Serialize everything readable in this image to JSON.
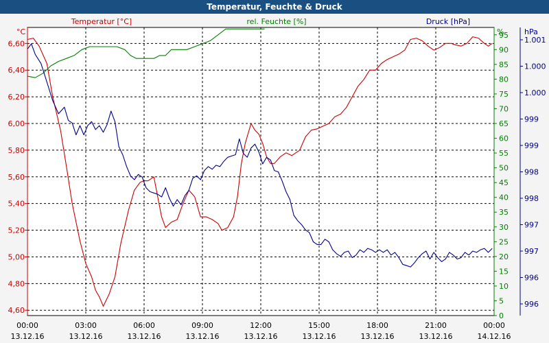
{
  "title": "Temperatur, Feuchte & Druck",
  "colors": {
    "temperature": "#cc0000",
    "humidity": "#008000",
    "pressure": "#00008b",
    "grid": "#000000",
    "titlebar": "#1a4f82"
  },
  "chart_data": {
    "type": "line",
    "title": "Temperatur, Feuchte & Druck",
    "grid": true,
    "x_tick_labels": [
      [
        "00:00",
        "13.12.16"
      ],
      [
        "03:00",
        "13.12.16"
      ],
      [
        "06:00",
        "13.12.16"
      ],
      [
        "09:00",
        "13.12.16"
      ],
      [
        "12:00",
        "13.12.16"
      ],
      [
        "15:00",
        "13.12.16"
      ],
      [
        "18:00",
        "13.12.16"
      ],
      [
        "21:00",
        "13.12.16"
      ],
      [
        "00:00",
        "14.12.16"
      ]
    ],
    "xlim": [
      0,
      24
    ],
    "axes": {
      "temperature": {
        "label": "Temperatur [°C]",
        "unit": "°C",
        "ylim": [
          4.56,
          6.72
        ],
        "ticks": [
          "4,60",
          "4,80",
          "5,00",
          "5,20",
          "5,40",
          "5,60",
          "5,80",
          "6,00",
          "6,20",
          "6,40",
          "6,60"
        ]
      },
      "humidity": {
        "label": "rel. Feuchte [%]",
        "unit": "%",
        "ylim": [
          0,
          97.5
        ],
        "ticks": [
          "0",
          "5",
          "10",
          "15",
          "20",
          "25",
          "30",
          "35",
          "40",
          "45",
          "50",
          "55",
          "60",
          "65",
          "70",
          "75",
          "80",
          "85",
          "90",
          "95"
        ]
      },
      "pressure": {
        "label": "Druck [hPa]",
        "unit": "hPa",
        "ticks": [
          "996",
          "996",
          "997",
          "997",
          "998",
          "998",
          "999",
          "999",
          "1.000",
          "1.000",
          "1.001"
        ]
      }
    },
    "series": [
      {
        "name": "Temperatur [°C]",
        "axis": "temperature",
        "x": [
          0,
          0.3,
          0.6,
          1,
          1.3,
          1.7,
          2,
          2.3,
          2.7,
          3,
          3.3,
          3.5,
          3.7,
          3.9,
          4.2,
          4.5,
          4.8,
          5.2,
          5.5,
          5.8,
          6,
          6.2,
          6.5,
          6.7,
          6.9,
          7.1,
          7.4,
          7.7,
          8,
          8.3,
          8.6,
          8.9,
          9.2,
          9.5,
          9.8,
          10,
          10.3,
          10.6,
          10.8,
          11,
          11.2,
          11.5,
          11.7,
          11.9,
          12.1,
          12.3,
          12.5,
          12.7,
          13,
          13.3,
          13.6,
          14,
          14.3,
          14.6,
          14.9,
          15.2,
          15.5,
          15.8,
          16.1,
          16.4,
          16.7,
          17,
          17.3,
          17.6,
          17.9,
          18.2,
          18.5,
          18.8,
          19.1,
          19.4,
          19.7,
          20,
          20.3,
          20.6,
          20.9,
          21.2,
          21.5,
          21.8,
          22,
          22.3,
          22.6,
          22.9,
          23.2,
          23.5,
          23.7,
          23.9
        ],
        "values": [
          6.63,
          6.64,
          6.58,
          6.45,
          6.2,
          5.95,
          5.68,
          5.4,
          5.12,
          4.95,
          4.85,
          4.75,
          4.7,
          4.63,
          4.72,
          4.85,
          5.1,
          5.35,
          5.5,
          5.56,
          5.57,
          5.57,
          5.6,
          5.45,
          5.3,
          5.22,
          5.26,
          5.28,
          5.4,
          5.5,
          5.45,
          5.3,
          5.3,
          5.28,
          5.25,
          5.2,
          5.22,
          5.3,
          5.45,
          5.7,
          5.85,
          6.0,
          5.95,
          5.92,
          5.85,
          5.75,
          5.7,
          5.7,
          5.75,
          5.78,
          5.76,
          5.8,
          5.9,
          5.95,
          5.96,
          5.98,
          6.0,
          6.05,
          6.07,
          6.12,
          6.2,
          6.28,
          6.33,
          6.4,
          6.4,
          6.45,
          6.48,
          6.5,
          6.52,
          6.55,
          6.63,
          6.64,
          6.62,
          6.58,
          6.55,
          6.57,
          6.6,
          6.6,
          6.59,
          6.58,
          6.6,
          6.65,
          6.64,
          6.6,
          6.58,
          6.6
        ]
      },
      {
        "name": "rel. Feuchte [%]",
        "axis": "humidity",
        "x": [
          0,
          0.4,
          0.8,
          1.2,
          1.6,
          2,
          2.4,
          2.8,
          3.2,
          3.5,
          3.8,
          4.2,
          4.6,
          5,
          5.3,
          5.6,
          5.9,
          6.2,
          6.5,
          6.8,
          7.1,
          7.4,
          7.8,
          8.2,
          8.6,
          9,
          9.4,
          9.8,
          10.2,
          10.6,
          11,
          11.4,
          11.8,
          12.2
        ],
        "values": [
          81,
          80.5,
          82,
          84.5,
          86,
          87,
          88,
          90,
          91,
          91,
          91,
          91,
          91,
          90,
          88,
          87,
          87,
          87,
          87,
          88,
          88,
          90,
          90,
          90,
          91,
          92,
          93,
          95,
          97,
          97,
          97,
          97,
          97,
          97
        ]
      },
      {
        "name": "Druck [hPa]",
        "axis": "pressure",
        "x": [
          0,
          0.2,
          0.4,
          0.7,
          1,
          1.3,
          1.6,
          1.9,
          2.1,
          2.3,
          2.5,
          2.7,
          2.9,
          3.1,
          3.3,
          3.5,
          3.7,
          3.9,
          4.1,
          4.3,
          4.5,
          4.7,
          4.9,
          5.1,
          5.3,
          5.5,
          5.7,
          5.9,
          6.1,
          6.3,
          6.5,
          6.7,
          6.9,
          7.1,
          7.3,
          7.5,
          7.7,
          7.9,
          8.1,
          8.3,
          8.5,
          8.7,
          8.9,
          9.1,
          9.3,
          9.5,
          9.7,
          9.9,
          10.1,
          10.3,
          10.5,
          10.7,
          10.9,
          11.1,
          11.3,
          11.5,
          11.7,
          11.9,
          12.1,
          12.3,
          12.5,
          12.7,
          12.9,
          13.1,
          13.3,
          13.5,
          13.7,
          13.9,
          14.1,
          14.3,
          14.5,
          14.7,
          14.9,
          15.1,
          15.3,
          15.5,
          15.7,
          15.9,
          16.1,
          16.3,
          16.5,
          16.7,
          16.9,
          17.1,
          17.3,
          17.5,
          17.7,
          17.9,
          18.1,
          18.3,
          18.5,
          18.7,
          18.9,
          19.1,
          19.3,
          19.5,
          19.7,
          19.9,
          20.1,
          20.3,
          20.5,
          20.7,
          20.9,
          21.1,
          21.3,
          21.5,
          21.7,
          21.9,
          22.1,
          22.3,
          22.5,
          22.7,
          22.9,
          23.1,
          23.3,
          23.5,
          23.7,
          23.9
        ],
        "values": [
          9.65,
          9.85,
          9.45,
          9.1,
          8.4,
          7.7,
          7.2,
          7.45,
          6.95,
          6.85,
          6.4,
          6.75,
          6.4,
          6.75,
          6.9,
          6.6,
          6.75,
          6.5,
          6.8,
          7.3,
          6.9,
          5.95,
          5.65,
          5.2,
          4.85,
          4.7,
          4.9,
          4.8,
          4.4,
          4.25,
          4.2,
          4.15,
          4.05,
          4.4,
          4.0,
          3.7,
          3.95,
          3.75,
          4.1,
          4.3,
          4.75,
          4.85,
          4.7,
          5.05,
          5.2,
          5.1,
          5.25,
          5.2,
          5.4,
          5.55,
          5.6,
          5.65,
          6.25,
          5.7,
          5.55,
          5.9,
          6.05,
          5.75,
          5.3,
          5.55,
          5.45,
          5.05,
          5.0,
          4.65,
          4.25,
          3.95,
          3.35,
          3.15,
          3.0,
          2.8,
          2.7,
          2.35,
          2.25,
          2.25,
          2.45,
          2.35,
          2.05,
          1.9,
          1.8,
          1.95,
          2.0,
          1.75,
          1.85,
          2.05,
          1.95,
          2.1,
          2.05,
          1.95,
          2.05,
          1.95,
          2.05,
          1.85,
          1.95,
          1.75,
          1.5,
          1.45,
          1.4,
          1.55,
          1.75,
          1.9,
          2.0,
          1.7,
          1.95,
          1.75,
          1.6,
          1.7,
          1.95,
          1.85,
          1.7,
          1.75,
          1.95,
          1.85,
          2.0,
          1.95,
          2.05,
          2.1,
          1.95,
          2.1
        ]
      }
    ]
  }
}
